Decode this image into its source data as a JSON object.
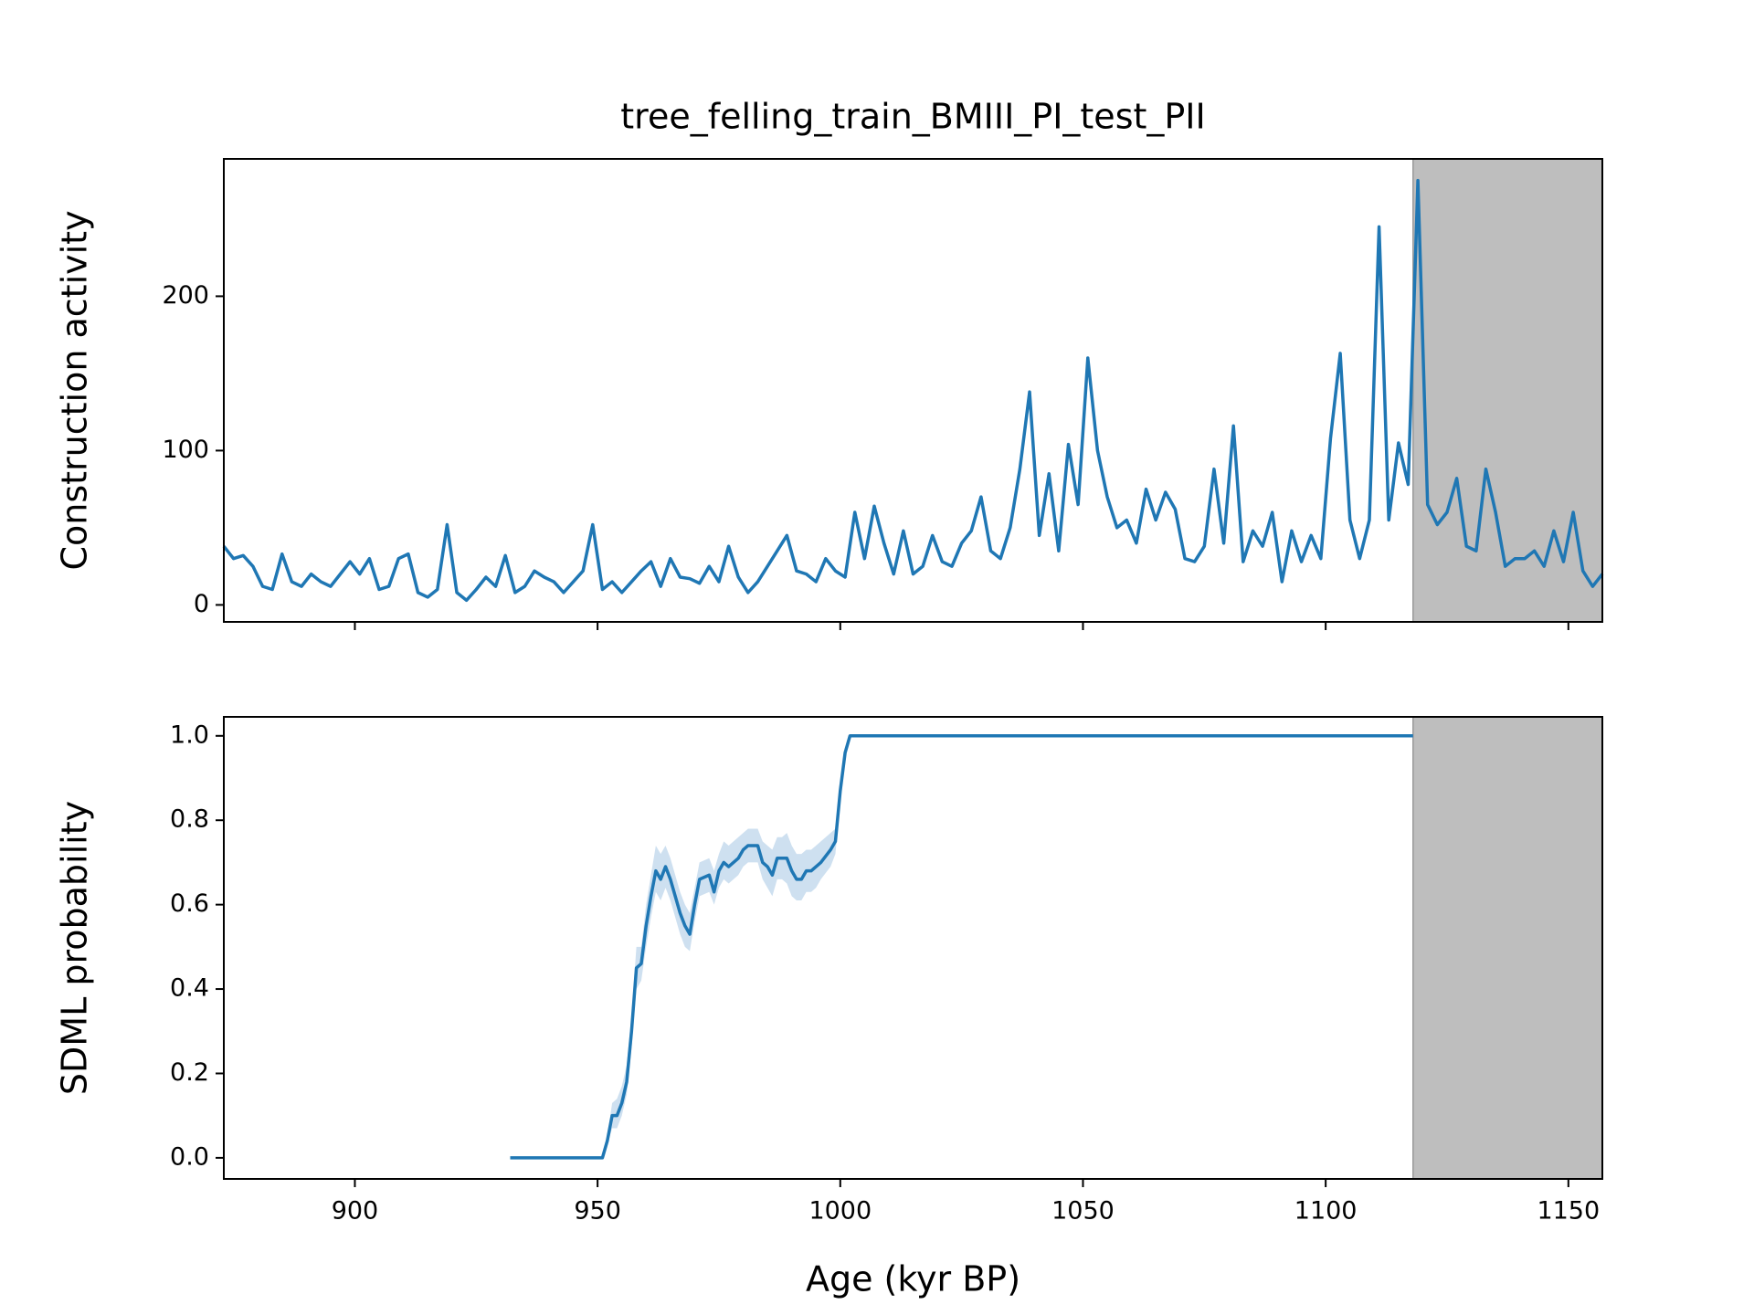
{
  "chart_data": [
    {
      "type": "line",
      "title": "tree_felling_train_BMIII_PI_test_PII",
      "ylabel": "Construction activity",
      "x": [
        873,
        875,
        877,
        879,
        881,
        883,
        885,
        887,
        889,
        891,
        893,
        895,
        897,
        899,
        901,
        903,
        905,
        907,
        909,
        911,
        913,
        915,
        917,
        919,
        921,
        923,
        925,
        927,
        929,
        931,
        933,
        935,
        937,
        939,
        941,
        943,
        945,
        947,
        949,
        951,
        953,
        955,
        957,
        959,
        961,
        963,
        965,
        967,
        969,
        971,
        973,
        975,
        977,
        979,
        981,
        983,
        985,
        987,
        989,
        991,
        993,
        995,
        997,
        999,
        1001,
        1003,
        1005,
        1007,
        1009,
        1011,
        1013,
        1015,
        1017,
        1019,
        1021,
        1023,
        1025,
        1027,
        1029,
        1031,
        1033,
        1035,
        1037,
        1039,
        1041,
        1043,
        1045,
        1047,
        1049,
        1051,
        1053,
        1055,
        1057,
        1059,
        1061,
        1063,
        1065,
        1067,
        1069,
        1071,
        1073,
        1075,
        1077,
        1079,
        1081,
        1083,
        1085,
        1087,
        1089,
        1091,
        1093,
        1095,
        1097,
        1099,
        1101,
        1103,
        1105,
        1107,
        1109,
        1111,
        1113,
        1115,
        1117,
        1119,
        1121,
        1123,
        1125,
        1127,
        1129,
        1131,
        1133,
        1135,
        1137,
        1139,
        1141,
        1143,
        1145,
        1147,
        1149,
        1151,
        1153,
        1155,
        1157
      ],
      "values": [
        38,
        30,
        32,
        25,
        12,
        10,
        33,
        15,
        12,
        20,
        15,
        12,
        20,
        28,
        20,
        30,
        10,
        12,
        30,
        33,
        8,
        5,
        10,
        52,
        8,
        3,
        10,
        18,
        12,
        32,
        8,
        12,
        22,
        18,
        15,
        8,
        15,
        22,
        52,
        10,
        15,
        8,
        15,
        22,
        28,
        12,
        30,
        18,
        17,
        14,
        25,
        15,
        38,
        18,
        8,
        15,
        25,
        35,
        45,
        22,
        20,
        15,
        30,
        22,
        18,
        60,
        30,
        64,
        40,
        20,
        48,
        20,
        25,
        45,
        28,
        25,
        40,
        48,
        70,
        35,
        30,
        50,
        88,
        138,
        45,
        85,
        35,
        104,
        65,
        160,
        100,
        70,
        50,
        55,
        40,
        75,
        55,
        73,
        62,
        30,
        28,
        38,
        88,
        40,
        116,
        28,
        48,
        38,
        60,
        15,
        48,
        28,
        45,
        30,
        108,
        163,
        55,
        30,
        55,
        245,
        55,
        105,
        78,
        275,
        65,
        52,
        60,
        82,
        38,
        35,
        88,
        60,
        25,
        30,
        30,
        35,
        25,
        48,
        28,
        60,
        22,
        12,
        20
      ],
      "color": "#1f77b4",
      "shaded_span": [
        1118,
        1157
      ],
      "shade_color": "#bebebe",
      "xlim": [
        873,
        1157
      ],
      "xticks": [
        900,
        950,
        1000,
        1050,
        1100,
        1150
      ],
      "ylim": [
        -11,
        289
      ],
      "yticks": [
        0,
        100,
        200
      ]
    },
    {
      "type": "line",
      "ylabel": "SDML probability",
      "xlabel": "Age (kyr BP)",
      "x": [
        932,
        951,
        952,
        953,
        954,
        955,
        956,
        957,
        958,
        959,
        960,
        961,
        962,
        963,
        964,
        965,
        966,
        967,
        968,
        969,
        970,
        971,
        973,
        974,
        975,
        976,
        977,
        978,
        979,
        980,
        981,
        982,
        983,
        984,
        985,
        986,
        987,
        988,
        989,
        990,
        991,
        992,
        993,
        994,
        995,
        996,
        998,
        999,
        1000,
        1001,
        1002,
        1118
      ],
      "values": [
        0,
        0,
        0.04,
        0.1,
        0.1,
        0.13,
        0.18,
        0.3,
        0.45,
        0.46,
        0.55,
        0.62,
        0.68,
        0.66,
        0.69,
        0.66,
        0.62,
        0.58,
        0.55,
        0.53,
        0.6,
        0.66,
        0.67,
        0.63,
        0.68,
        0.7,
        0.69,
        0.7,
        0.71,
        0.73,
        0.74,
        0.74,
        0.74,
        0.7,
        0.69,
        0.67,
        0.71,
        0.71,
        0.71,
        0.68,
        0.66,
        0.66,
        0.68,
        0.68,
        0.69,
        0.7,
        0.73,
        0.75,
        0.87,
        0.96,
        1,
        1
      ],
      "lower": [
        0,
        0,
        0.03,
        0.07,
        0.07,
        0.1,
        0.15,
        0.26,
        0.4,
        0.42,
        0.5,
        0.57,
        0.63,
        0.61,
        0.64,
        0.61,
        0.57,
        0.53,
        0.5,
        0.49,
        0.56,
        0.62,
        0.63,
        0.6,
        0.64,
        0.66,
        0.65,
        0.66,
        0.67,
        0.69,
        0.7,
        0.7,
        0.7,
        0.66,
        0.64,
        0.62,
        0.66,
        0.66,
        0.65,
        0.62,
        0.61,
        0.61,
        0.63,
        0.63,
        0.64,
        0.66,
        0.69,
        0.72,
        0.85,
        0.95,
        1,
        1
      ],
      "upper": [
        0,
        0,
        0.05,
        0.13,
        0.14,
        0.17,
        0.22,
        0.34,
        0.5,
        0.5,
        0.6,
        0.67,
        0.74,
        0.72,
        0.74,
        0.71,
        0.67,
        0.63,
        0.6,
        0.58,
        0.64,
        0.7,
        0.71,
        0.68,
        0.72,
        0.75,
        0.74,
        0.75,
        0.76,
        0.77,
        0.78,
        0.78,
        0.78,
        0.75,
        0.74,
        0.73,
        0.76,
        0.76,
        0.77,
        0.74,
        0.72,
        0.72,
        0.73,
        0.73,
        0.74,
        0.75,
        0.77,
        0.78,
        0.89,
        0.97,
        1,
        1
      ],
      "color": "#1f77b4",
      "band_color": "#b9d3ea",
      "shaded_span": [
        1118,
        1157
      ],
      "shade_color": "#bebebe",
      "xlim": [
        873,
        1157
      ],
      "xticks": [
        900,
        950,
        1000,
        1050,
        1100,
        1150
      ],
      "ylim": [
        -0.05,
        1.045
      ],
      "yticks": [
        {
          "value": 0,
          "label": "0.0"
        },
        0.2,
        0.4,
        0.6,
        0.8,
        {
          "value": 1,
          "label": "1.0"
        }
      ]
    }
  ]
}
